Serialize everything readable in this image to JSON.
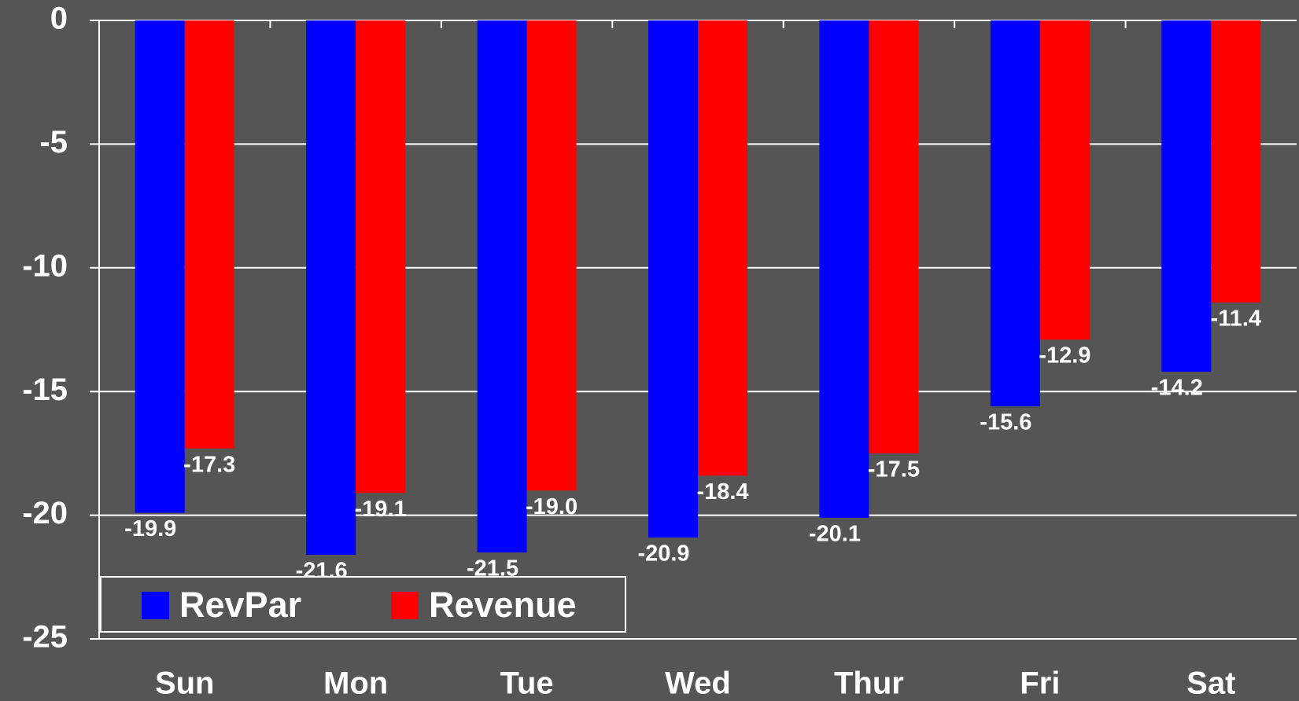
{
  "chart_data": {
    "type": "bar",
    "categories": [
      "Sun",
      "Mon",
      "Tue",
      "Wed",
      "Thur",
      "Fri",
      "Sat"
    ],
    "series": [
      {
        "name": "RevPar",
        "color": "#0000ff",
        "values": [
          -19.9,
          -21.6,
          -21.5,
          -20.9,
          -20.1,
          -15.6,
          -14.2
        ],
        "value_labels": [
          "-19.9",
          "-21.6",
          "-21.5",
          "-20.9",
          "-20.1",
          "-15.6",
          "-14.2"
        ]
      },
      {
        "name": "Revenue",
        "color": "#ff0000",
        "values": [
          -17.3,
          -19.1,
          -19.0,
          -18.4,
          -17.5,
          -12.9,
          -11.4
        ],
        "value_labels": [
          "-17.3",
          "-19.1",
          "-19.0",
          "-18.4",
          "-17.5",
          "-12.9",
          "-11.4"
        ]
      }
    ],
    "ylim": [
      -25,
      0
    ],
    "yticks": [
      0,
      -5,
      -10,
      -15,
      -20,
      -25
    ],
    "grid": true,
    "legend": "bottom-left"
  }
}
